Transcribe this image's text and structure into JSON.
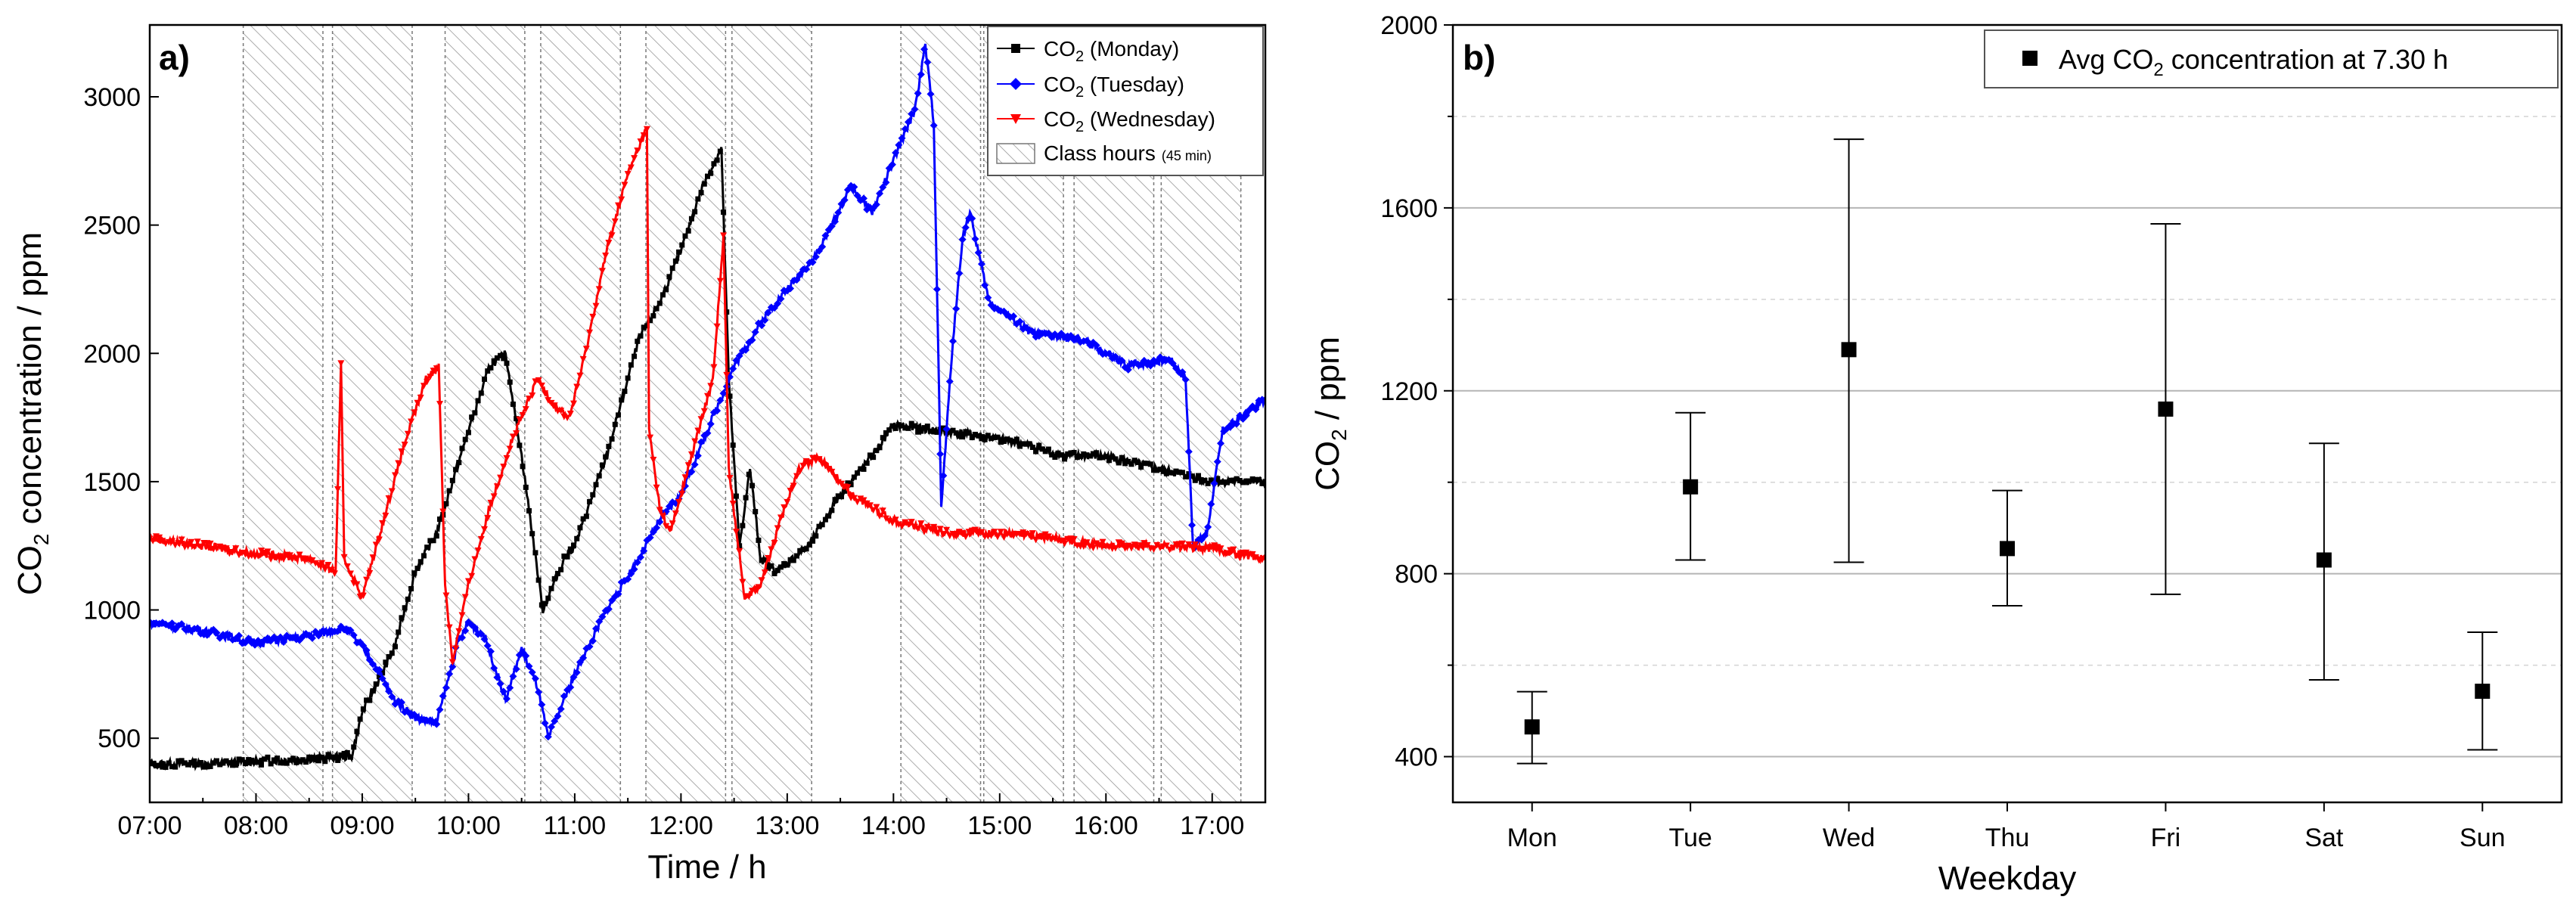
{
  "chart_data": [
    {
      "type": "line",
      "panel_label": "a)",
      "xlabel": "Time / h",
      "ylabel_main": "CO",
      "ylabel_sub": "2",
      "ylabel_rest": " concentration / ppm",
      "xlim": [
        7.0,
        17.5
      ],
      "ylim": [
        250,
        3280
      ],
      "x_tick_values": [
        7,
        8,
        9,
        10,
        11,
        12,
        13,
        14,
        15,
        16,
        17
      ],
      "x_tick_labels": [
        "07:00",
        "08:00",
        "09:00",
        "10:00",
        "11:00",
        "12:00",
        "13:00",
        "14:00",
        "15:00",
        "16:00",
        "17:00"
      ],
      "y_ticks": [
        500,
        1000,
        1500,
        2000,
        2500,
        3000
      ],
      "class_hours": [
        [
          7.88,
          8.63
        ],
        [
          8.72,
          9.47
        ],
        [
          9.78,
          10.53
        ],
        [
          10.68,
          11.43
        ],
        [
          11.67,
          12.42
        ],
        [
          12.48,
          13.23
        ],
        [
          14.07,
          14.82
        ],
        [
          14.85,
          15.6
        ],
        [
          15.7,
          16.45
        ],
        [
          16.52,
          17.27
        ]
      ],
      "legend": [
        {
          "co": "CO",
          "sub": "2",
          "rest": " (Monday)",
          "color": "#000000",
          "marker": "square"
        },
        {
          "co": "CO",
          "sub": "2",
          "rest": " (Tuesday)",
          "color": "#0000ff",
          "marker": "diamond"
        },
        {
          "co": "CO",
          "sub": "2",
          "rest": " (Wednesday)",
          "color": "#ff0000",
          "marker": "triangle-down"
        },
        {
          "label": "Class hours",
          "small": "(45 min)",
          "marker": "hatch"
        }
      ],
      "series": [
        {
          "name": "Monday",
          "color": "#000000",
          "points": [
            [
              7.0,
              400
            ],
            [
              7.5,
              400
            ],
            [
              8.0,
              410
            ],
            [
              8.5,
              420
            ],
            [
              8.9,
              430
            ],
            [
              9.0,
              600
            ],
            [
              9.3,
              850
            ],
            [
              9.5,
              1150
            ],
            [
              9.7,
              1300
            ],
            [
              10.0,
              1700
            ],
            [
              10.2,
              1950
            ],
            [
              10.35,
              2000
            ],
            [
              10.5,
              1600
            ],
            [
              10.7,
              1000
            ],
            [
              10.9,
              1200
            ],
            [
              11.0,
              1250
            ],
            [
              11.3,
              1600
            ],
            [
              11.6,
              2050
            ],
            [
              11.8,
              2200
            ],
            [
              12.0,
              2400
            ],
            [
              12.2,
              2650
            ],
            [
              12.38,
              2800
            ],
            [
              12.45,
              1900
            ],
            [
              12.55,
              1250
            ],
            [
              12.65,
              1550
            ],
            [
              12.75,
              1200
            ],
            [
              12.9,
              1150
            ],
            [
              13.2,
              1250
            ],
            [
              13.5,
              1450
            ],
            [
              13.8,
              1600
            ],
            [
              14.0,
              1720
            ],
            [
              14.4,
              1700
            ],
            [
              14.8,
              1680
            ],
            [
              15.2,
              1650
            ],
            [
              15.6,
              1600
            ],
            [
              16.0,
              1600
            ],
            [
              16.5,
              1550
            ],
            [
              17.0,
              1500
            ],
            [
              17.5,
              1500
            ]
          ]
        },
        {
          "name": "Tuesday",
          "color": "#0000ff",
          "points": [
            [
              7.0,
              950
            ],
            [
              7.5,
              920
            ],
            [
              8.0,
              870
            ],
            [
              8.5,
              900
            ],
            [
              8.85,
              930
            ],
            [
              9.1,
              800
            ],
            [
              9.3,
              650
            ],
            [
              9.5,
              580
            ],
            [
              9.7,
              560
            ],
            [
              9.9,
              870
            ],
            [
              10.0,
              950
            ],
            [
              10.15,
              900
            ],
            [
              10.35,
              650
            ],
            [
              10.5,
              850
            ],
            [
              10.65,
              700
            ],
            [
              10.75,
              500
            ],
            [
              11.0,
              750
            ],
            [
              11.3,
              1000
            ],
            [
              11.6,
              1200
            ],
            [
              11.8,
              1350
            ],
            [
              12.0,
              1450
            ],
            [
              12.2,
              1650
            ],
            [
              12.5,
              1950
            ],
            [
              12.8,
              2150
            ],
            [
              13.0,
              2250
            ],
            [
              13.3,
              2400
            ],
            [
              13.6,
              2650
            ],
            [
              13.8,
              2550
            ],
            [
              14.0,
              2750
            ],
            [
              14.2,
              2950
            ],
            [
              14.3,
              3200
            ],
            [
              14.38,
              2900
            ],
            [
              14.45,
              1400
            ],
            [
              14.55,
              2000
            ],
            [
              14.65,
              2450
            ],
            [
              14.72,
              2550
            ],
            [
              14.9,
              2200
            ],
            [
              15.3,
              2080
            ],
            [
              15.8,
              2050
            ],
            [
              16.2,
              1950
            ],
            [
              16.6,
              1980
            ],
            [
              16.75,
              1900
            ],
            [
              16.82,
              1250
            ],
            [
              16.95,
              1300
            ],
            [
              17.1,
              1700
            ],
            [
              17.5,
              1820
            ]
          ]
        },
        {
          "name": "Wednesday",
          "color": "#ff0000",
          "points": [
            [
              7.0,
              1280
            ],
            [
              7.5,
              1250
            ],
            [
              8.0,
              1220
            ],
            [
              8.5,
              1200
            ],
            [
              8.75,
              1150
            ],
            [
              8.8,
              1950
            ],
            [
              8.83,
              1200
            ],
            [
              9.0,
              1050
            ],
            [
              9.2,
              1350
            ],
            [
              9.4,
              1650
            ],
            [
              9.6,
              1900
            ],
            [
              9.72,
              1950
            ],
            [
              9.78,
              1100
            ],
            [
              9.85,
              800
            ],
            [
              10.0,
              1100
            ],
            [
              10.2,
              1400
            ],
            [
              10.4,
              1650
            ],
            [
              10.65,
              1900
            ],
            [
              10.8,
              1800
            ],
            [
              10.95,
              1750
            ],
            [
              11.1,
              2000
            ],
            [
              11.3,
              2400
            ],
            [
              11.5,
              2700
            ],
            [
              11.68,
              2880
            ],
            [
              11.7,
              1700
            ],
            [
              11.8,
              1400
            ],
            [
              11.9,
              1300
            ],
            [
              12.1,
              1600
            ],
            [
              12.3,
              1900
            ],
            [
              12.4,
              2450
            ],
            [
              12.45,
              1550
            ],
            [
              12.6,
              1050
            ],
            [
              12.75,
              1100
            ],
            [
              12.9,
              1300
            ],
            [
              13.1,
              1550
            ],
            [
              13.3,
              1600
            ],
            [
              13.6,
              1450
            ],
            [
              14.0,
              1350
            ],
            [
              14.5,
              1300
            ],
            [
              15.0,
              1300
            ],
            [
              15.5,
              1280
            ],
            [
              16.0,
              1250
            ],
            [
              16.5,
              1250
            ],
            [
              17.0,
              1240
            ],
            [
              17.5,
              1200
            ]
          ]
        }
      ]
    },
    {
      "type": "scatter",
      "panel_label": "b)",
      "xlabel": "Weekday",
      "ylabel_main": "CO",
      "ylabel_sub": "2",
      "ylabel_rest": " / ppm",
      "categories": [
        "Mon",
        "Tue",
        "Wed",
        "Thu",
        "Fri",
        "Sat",
        "Sun"
      ],
      "values": [
        465,
        990,
        1290,
        855,
        1160,
        830,
        543
      ],
      "error_low": [
        385,
        830,
        825,
        730,
        755,
        568,
        415
      ],
      "error_high": [
        542,
        1152,
        1750,
        982,
        1565,
        1085,
        672
      ],
      "ylim": [
        300,
        2000
      ],
      "y_ticks": [
        400,
        800,
        1200,
        1600,
        2000
      ],
      "minor_gridlines": [
        600,
        1000,
        1400,
        1800
      ],
      "legend": {
        "pre": "Avg CO",
        "sub": "2",
        "post": " concentration at 7.30 h"
      }
    }
  ]
}
